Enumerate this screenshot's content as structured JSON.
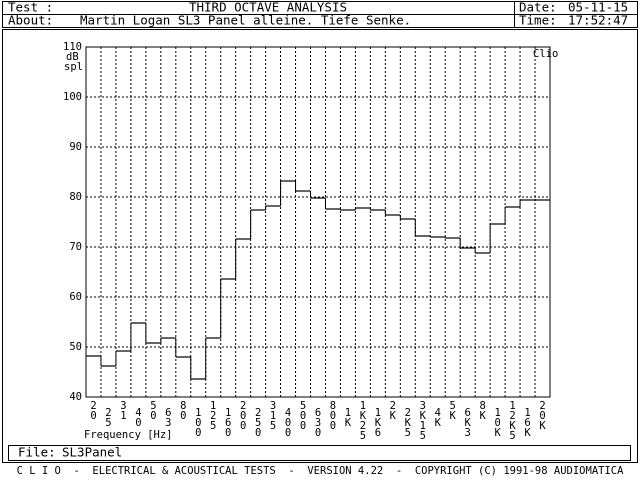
{
  "header": {
    "test_label": "Test :",
    "title": "THIRD OCTAVE ANALYSIS",
    "date_label": "Date:",
    "date": "05-11-15",
    "about_label": "About:",
    "about": "Martin Logan SL3 Panel alleine. Tiefe Senke.",
    "time_label": "Time:",
    "time": "17:52:47"
  },
  "chart_data": {
    "type": "step",
    "ylabel": [
      "dB",
      "spl"
    ],
    "xlabel": "Frequency [Hz]",
    "annotation": "Clio",
    "categories": [
      "20",
      "25",
      "31",
      "40",
      "50",
      "63",
      "80",
      "100",
      "125",
      "160",
      "200",
      "250",
      "315",
      "400",
      "500",
      "630",
      "800",
      "1K",
      "1K25",
      "1K6",
      "2K",
      "2K5",
      "3K15",
      "4K",
      "5K",
      "6K3",
      "8K",
      "10K",
      "12K5",
      "16K",
      "20K"
    ],
    "series": [
      {
        "name": "SL3Panel",
        "color": "#000000",
        "values": [
          48.2,
          46.2,
          49.2,
          54.8,
          50.8,
          51.8,
          48,
          43.6,
          51.8,
          63.6,
          71.6,
          77.4,
          78.2,
          83.2,
          81.2,
          79.8,
          77.6,
          77.4,
          77.8,
          77.4,
          76.4,
          75.6,
          72.2,
          72,
          71.8,
          69.8,
          68.8,
          74.6,
          78,
          79.4,
          79.4
        ]
      }
    ],
    "ylim": [
      40,
      110
    ],
    "yticks": [
      40,
      50,
      60,
      70,
      80,
      90,
      100,
      110
    ],
    "grid": true
  },
  "file": {
    "label": "File:",
    "name": "SL3Panel"
  },
  "footer": "C L I O  -  ELECTRICAL & ACOUSTICAL TESTS  -  VERSION 4.22  -  COPYRIGHT (C) 1991-98 AUDIOMATICA"
}
